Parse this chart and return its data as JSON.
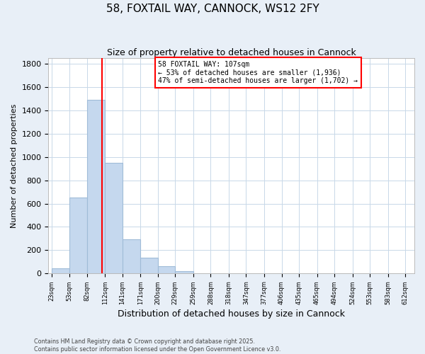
{
  "title": "58, FOXTAIL WAY, CANNOCK, WS12 2FY",
  "subtitle": "Size of property relative to detached houses in Cannock",
  "xlabel": "Distribution of detached houses by size in Cannock",
  "ylabel": "Number of detached properties",
  "bins": [
    23,
    53,
    82,
    112,
    141,
    171,
    200,
    229,
    259,
    288,
    318,
    347,
    377,
    406,
    435,
    465,
    494,
    524,
    553,
    583,
    612
  ],
  "counts": [
    45,
    650,
    1490,
    950,
    295,
    135,
    60,
    20,
    5,
    0,
    0,
    0,
    2,
    0,
    0,
    0,
    0,
    0,
    0,
    0
  ],
  "bar_color": "#c5d8ee",
  "bar_edge_color": "#a0bcd8",
  "vline_x": 107,
  "vline_color": "red",
  "annotation_title": "58 FOXTAIL WAY: 107sqm",
  "annotation_line1": "← 53% of detached houses are smaller (1,936)",
  "annotation_line2": "47% of semi-detached houses are larger (1,702) →",
  "annotation_box_color": "white",
  "annotation_box_edge_color": "red",
  "ylim": [
    0,
    1850
  ],
  "yticks": [
    0,
    200,
    400,
    600,
    800,
    1000,
    1200,
    1400,
    1600,
    1800
  ],
  "footnote1": "Contains HM Land Registry data © Crown copyright and database right 2025.",
  "footnote2": "Contains public sector information licensed under the Open Government Licence v3.0.",
  "bg_color": "#e8eff7",
  "plot_bg_color": "#ffffff",
  "grid_color": "#c8d8e8"
}
